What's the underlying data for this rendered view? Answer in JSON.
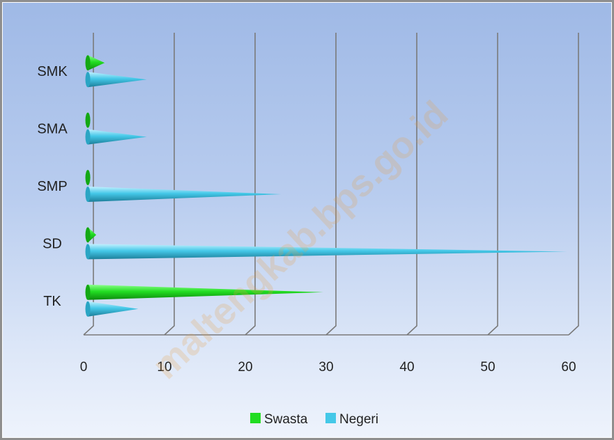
{
  "chart_data": {
    "type": "bar",
    "orientation": "horizontal",
    "style": "3d-cone",
    "categories": [
      "TK",
      "SD",
      "SMP",
      "SMA",
      "SMK"
    ],
    "series": [
      {
        "name": "Swasta",
        "color": "#22dd22",
        "values": [
          28,
          1,
          0,
          0,
          2
        ]
      },
      {
        "name": "Negeri",
        "color": "#44c8e8",
        "values": [
          6,
          57,
          23,
          7,
          7
        ]
      }
    ],
    "xlim": [
      0,
      60
    ],
    "xticks": [
      0,
      10,
      20,
      30,
      40,
      50,
      60
    ],
    "grid": true,
    "legend_position": "bottom",
    "watermark": "maltengkab.bps.go.id"
  }
}
